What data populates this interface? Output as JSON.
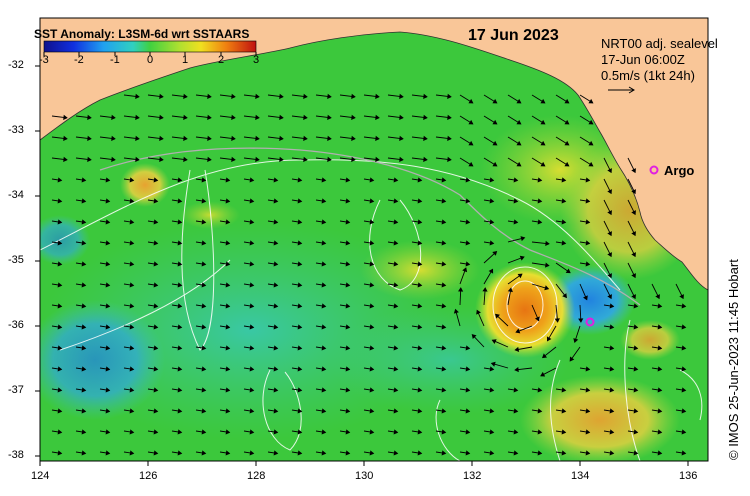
{
  "colorbar": {
    "title": "SST Anomaly: L3SM-6d wrt SSTAARS",
    "ticks": [
      "-3",
      "-2",
      "-1",
      "0",
      "1",
      "2",
      "3"
    ]
  },
  "date": "17 Jun 2023",
  "overlay": {
    "line1": "NRT00 adj. sealevel",
    "line2": "17-Jun 06:00Z",
    "line3": "0.5m/s (1kt 24h)"
  },
  "argo_label": "Argo",
  "credit": "© IMOS 25-Jun-2023 11:45 Hobart",
  "axes": {
    "lon_ticks": [
      "124",
      "126",
      "128",
      "130",
      "132",
      "134",
      "136"
    ],
    "lat_ticks": [
      "-32",
      "-33",
      "-34",
      "-35",
      "-36",
      "-37",
      "-38"
    ]
  },
  "colors": {
    "land": "#f9c698",
    "ocean_base": "#3cc83c",
    "warm_eddy": "#f08c14",
    "cold_eddy": "#2c8ee0",
    "argo": "#e020e0"
  }
}
